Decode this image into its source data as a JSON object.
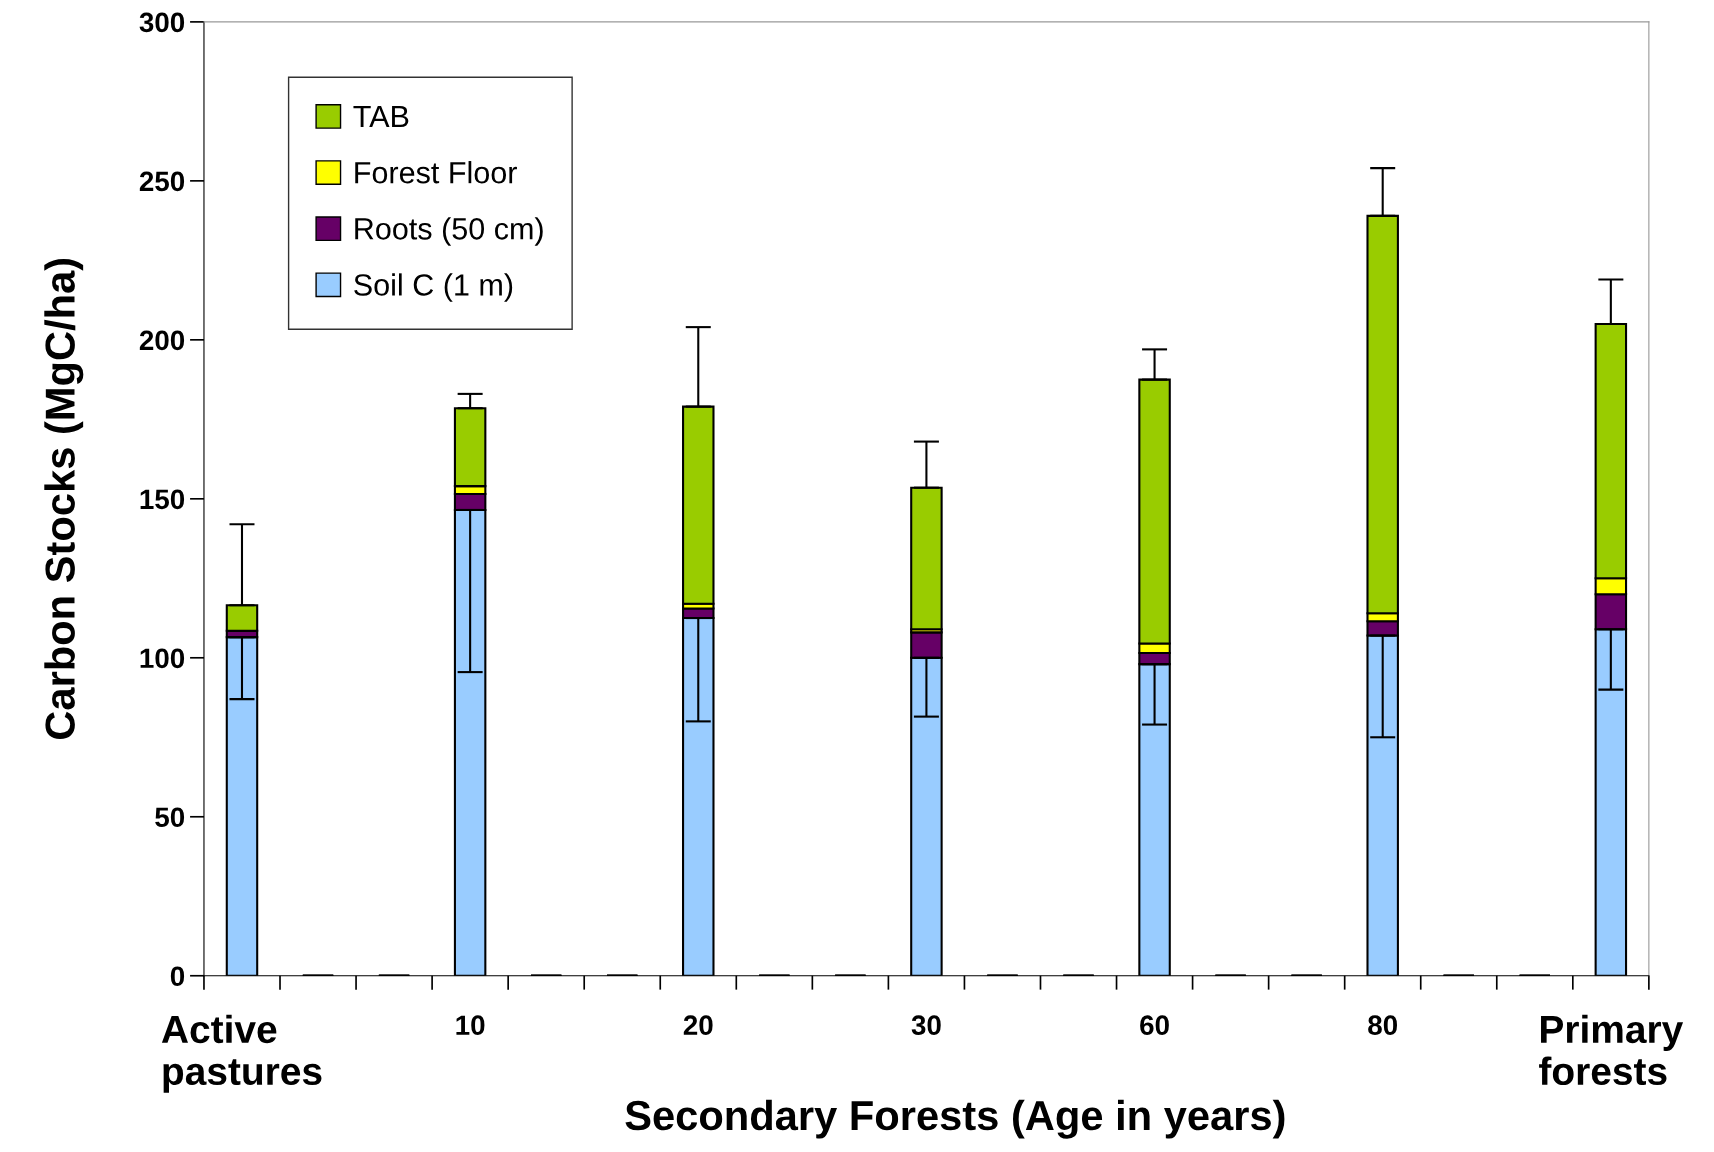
{
  "chart_data": {
    "type": "bar",
    "stacked": true,
    "xlabel": "Secondary Forests (Age in years)",
    "ylabel": "Carbon Stocks (MgC/ha)",
    "categories": [
      "Active\npastures",
      null,
      null,
      "10",
      null,
      null,
      "20",
      null,
      null,
      "30",
      null,
      null,
      "60",
      null,
      null,
      "80",
      null,
      null,
      "Primary\nforests"
    ],
    "series": [
      {
        "name": "Soil C (1 m)",
        "color": "#99ccff",
        "values": [
          106.5,
          null,
          null,
          146.5,
          null,
          null,
          112.5,
          null,
          null,
          100,
          null,
          null,
          98,
          null,
          null,
          107,
          null,
          null,
          109
        ],
        "errors": [
          [
            87,
            106.5
          ],
          null,
          null,
          [
            95.5,
            146.5
          ],
          null,
          null,
          [
            80,
            112.5
          ],
          null,
          null,
          [
            81.5,
            100
          ],
          null,
          null,
          [
            79,
            98
          ],
          null,
          null,
          [
            75,
            107
          ],
          null,
          null,
          [
            90,
            109
          ]
        ]
      },
      {
        "name": "Roots (50 cm)",
        "color": "#660066",
        "values": [
          2,
          null,
          null,
          5,
          null,
          null,
          3,
          null,
          null,
          8,
          null,
          null,
          3.5,
          null,
          null,
          4.5,
          null,
          null,
          11
        ]
      },
      {
        "name": "Forest Floor",
        "color": "#ffff00",
        "values": [
          0,
          null,
          null,
          2.5,
          null,
          null,
          1.5,
          null,
          null,
          1,
          null,
          null,
          3,
          null,
          null,
          2.5,
          null,
          null,
          5
        ]
      },
      {
        "name": "TAB",
        "color": "#99cc00",
        "values": [
          8,
          null,
          null,
          24.5,
          null,
          null,
          62,
          null,
          null,
          44.5,
          null,
          null,
          83,
          null,
          null,
          125,
          null,
          null,
          80
        ],
        "errors": [
          [
            116.5,
            142
          ],
          null,
          null,
          [
            178.5,
            183
          ],
          null,
          null,
          [
            179,
            204
          ],
          null,
          null,
          [
            153.5,
            168
          ],
          null,
          null,
          [
            187.5,
            197
          ],
          null,
          null,
          [
            239,
            254
          ],
          null,
          null,
          [
            205,
            219
          ]
        ]
      }
    ],
    "ylim": [
      0,
      300
    ],
    "yticks": [
      0,
      50,
      100,
      150,
      200,
      250,
      300
    ],
    "grid": false,
    "legend": "top left"
  }
}
